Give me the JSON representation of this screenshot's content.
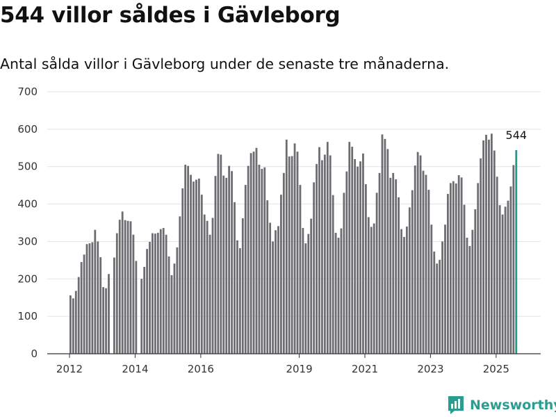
{
  "title": "544 villor såldes i Gävleborg",
  "subtitle": "Antal sålda villor i Gävleborg under de senaste tre månaderna.",
  "brand": {
    "name": "Newsworthy",
    "logo_icon": "bar-chart-logo-icon",
    "color": "#2b9c8f"
  },
  "colors": {
    "bar": "#6d6c71",
    "highlight": "#1f9a8c",
    "grid": "#e2e2e2",
    "axis": "#333333"
  },
  "chart_data": {
    "type": "bar",
    "ylim": [
      0,
      700
    ],
    "yticks": [
      0,
      100,
      200,
      300,
      400,
      500,
      600,
      700
    ],
    "grid": true,
    "x_start_year": 2012,
    "x_start_month": 1,
    "xticks": [
      "2012",
      "2014",
      "2016",
      "2019",
      "2021",
      "2023",
      "2025"
    ],
    "highlight_label": "544",
    "values": [
      156,
      148,
      168,
      205,
      245,
      265,
      293,
      295,
      298,
      331,
      300,
      258,
      178,
      175,
      213,
      0,
      257,
      322,
      358,
      380,
      357,
      355,
      354,
      318,
      248,
      0,
      200,
      232,
      280,
      299,
      322,
      321,
      323,
      333,
      336,
      318,
      260,
      210,
      241,
      284,
      367,
      442,
      505,
      502,
      478,
      460,
      465,
      468,
      425,
      372,
      355,
      318,
      363,
      475,
      534,
      532,
      476,
      470,
      502,
      488,
      405,
      303,
      282,
      362,
      451,
      502,
      536,
      540,
      550,
      505,
      494,
      498,
      410,
      350,
      300,
      330,
      341,
      425,
      483,
      572,
      527,
      528,
      562,
      540,
      451,
      336,
      295,
      320,
      361,
      458,
      507,
      552,
      517,
      532,
      566,
      530,
      424,
      323,
      310,
      335,
      430,
      487,
      566,
      553,
      520,
      500,
      514,
      535,
      453,
      365,
      339,
      348,
      430,
      483,
      586,
      574,
      547,
      470,
      483,
      466,
      418,
      333,
      312,
      340,
      391,
      437,
      503,
      539,
      530,
      489,
      478,
      438,
      345,
      273,
      241,
      251,
      300,
      345,
      427,
      456,
      461,
      455,
      477,
      471,
      398,
      310,
      288,
      331,
      386,
      456,
      522,
      570,
      585,
      572,
      588,
      543,
      473,
      397,
      372,
      393,
      409,
      447,
      504,
      544
    ]
  }
}
